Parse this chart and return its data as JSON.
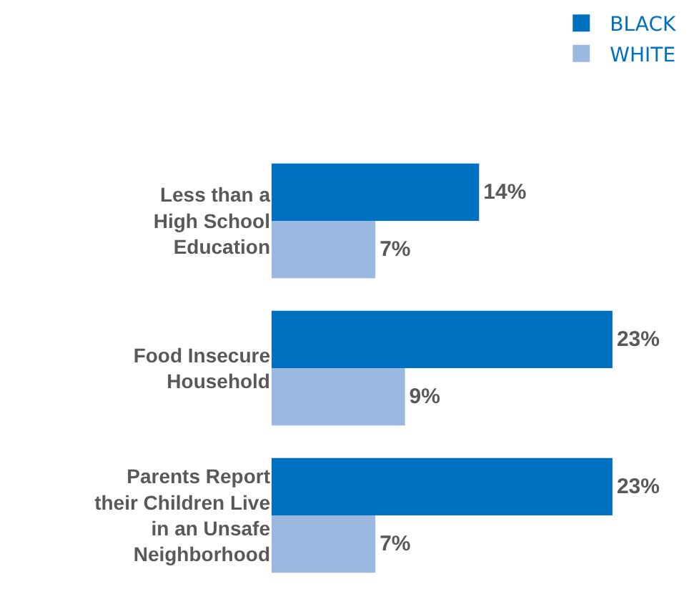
{
  "chart_data": {
    "type": "bar",
    "orientation": "horizontal",
    "categories": [
      "Less than a\nHigh School\nEducation",
      "Food Insecure\nHousehold",
      "Parents Report\ntheir Children Live\nin an Unsafe\nNeighborhood"
    ],
    "series": [
      {
        "name": "BLACK",
        "color": "#0070c0",
        "values": [
          14,
          23,
          23
        ],
        "value_labels": [
          "14%",
          "23%",
          "23%"
        ]
      },
      {
        "name": "WHITE",
        "color": "#9bb8e0",
        "values": [
          7,
          9,
          7
        ],
        "value_labels": [
          "7%",
          "9%",
          "7%"
        ]
      }
    ],
    "legend": "top right",
    "grid": false
  }
}
